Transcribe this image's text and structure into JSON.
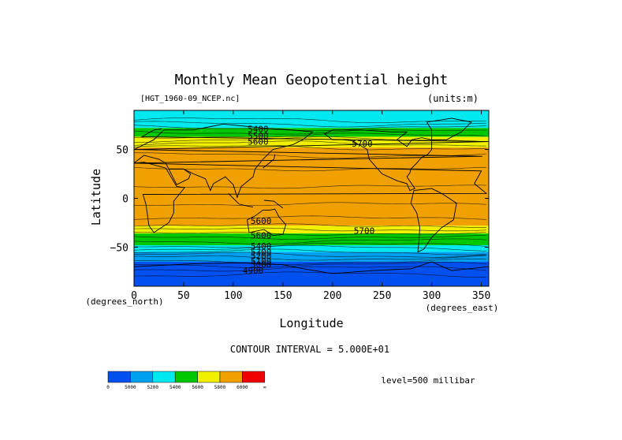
{
  "chart_data": {
    "type": "heatmap",
    "title": "Monthly Mean Geopotential height",
    "file_label": "[HGT_1960-09_NCEP.nc]",
    "units_label": "(units:m)",
    "xlabel": "Longitude",
    "ylabel": "Latitude",
    "x_units": "(degrees_east)",
    "y_units": "(degrees_north)",
    "xlim": [
      0,
      357.5
    ],
    "ylim": [
      -90,
      90
    ],
    "x_ticks": [
      0,
      50,
      100,
      150,
      200,
      250,
      300,
      350
    ],
    "y_ticks": [
      50,
      0,
      -50
    ],
    "contour_interval_text": "CONTOUR INTERVAL = 5.000E+01",
    "level_text": "level=500 millibar",
    "contour_interval": 50,
    "bands": [
      {
        "lat_from": 90,
        "lat_to": 72,
        "value_range": "5200-5400",
        "color": "#00e8f0"
      },
      {
        "lat_from": 72,
        "lat_to": 63,
        "value_range": "5400-5600",
        "color": "#00c800"
      },
      {
        "lat_from": 63,
        "lat_to": 52,
        "value_range": "5600-5800",
        "color": "#f0f000"
      },
      {
        "lat_from": 52,
        "lat_to": -28,
        "value_range": "5800-6000",
        "color": "#f0a000"
      },
      {
        "lat_from": -28,
        "lat_to": -36,
        "value_range": "5600-5800",
        "color": "#f0f000"
      },
      {
        "lat_from": -36,
        "lat_to": -48,
        "value_range": "5400-5600",
        "color": "#00c800"
      },
      {
        "lat_from": -48,
        "lat_to": -55,
        "value_range": "5200-5400",
        "color": "#00e8f0"
      },
      {
        "lat_from": -55,
        "lat_to": -65,
        "value_range": "5000-5200",
        "color": "#00a0f0"
      },
      {
        "lat_from": -65,
        "lat_to": -90,
        "value_range": "0-5000",
        "color": "#0050f0"
      }
    ],
    "contour_labels": [
      {
        "text": "5400",
        "lon": 125,
        "lat": 71
      },
      {
        "text": "5500",
        "lon": 125,
        "lat": 64
      },
      {
        "text": "5600",
        "lon": 125,
        "lat": 58
      },
      {
        "text": "5700",
        "lon": 230,
        "lat": 56
      },
      {
        "text": "5600",
        "lon": 128,
        "lat": -23
      },
      {
        "text": "5700",
        "lon": 232,
        "lat": -33
      },
      {
        "text": "5600",
        "lon": 128,
        "lat": -38
      },
      {
        "text": "5400",
        "lon": 128,
        "lat": -49
      },
      {
        "text": "5300",
        "lon": 128,
        "lat": -55
      },
      {
        "text": "5200",
        "lon": 128,
        "lat": -59
      },
      {
        "text": "5100",
        "lon": 128,
        "lat": -64
      },
      {
        "text": "5000",
        "lon": 128,
        "lat": -68
      },
      {
        "text": "4900",
        "lon": 120,
        "lat": -74
      }
    ],
    "colorbar": {
      "colors": [
        "#0050f0",
        "#00a0f0",
        "#00e8f0",
        "#00c800",
        "#f0f000",
        "#f0a000",
        "#f00000"
      ],
      "labels": [
        "0",
        "5000",
        "5200",
        "5400",
        "5600",
        "5800",
        "6000",
        "∞"
      ]
    }
  }
}
